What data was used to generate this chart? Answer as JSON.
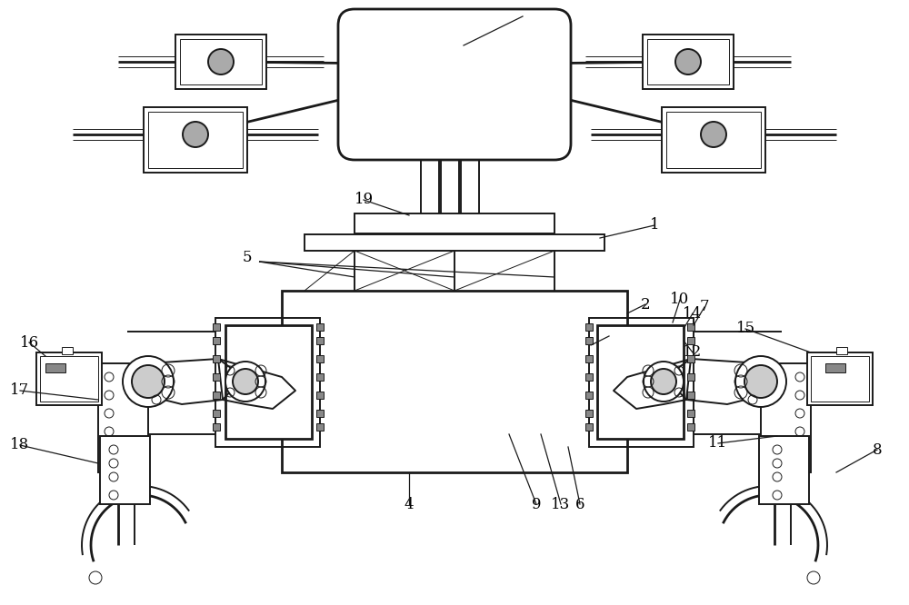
{
  "bg_color": "#ffffff",
  "line_color": "#1a1a1a",
  "lw": 1.4,
  "lw_thin": 0.7,
  "lw_thick": 2.0,
  "figsize": [
    10.0,
    6.66
  ],
  "dpi": 100
}
